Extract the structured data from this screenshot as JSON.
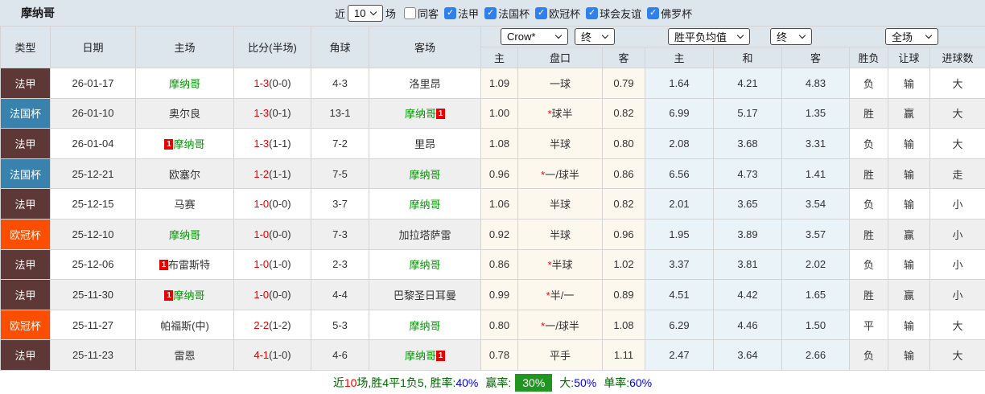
{
  "title": "摩纳哥",
  "filters": {
    "recent_label": "近",
    "recent_value": "10",
    "recent_suffix": "场",
    "checkboxes": [
      {
        "label": "同客",
        "checked": false
      },
      {
        "label": "法甲",
        "checked": true
      },
      {
        "label": "法国杯",
        "checked": true
      },
      {
        "label": "欧冠杯",
        "checked": true
      },
      {
        "label": "球会友谊",
        "checked": true
      },
      {
        "label": "佛罗杯",
        "checked": true
      }
    ]
  },
  "dropdowns": [
    {
      "label": "Crow*"
    },
    {
      "label": "终"
    },
    {
      "label": "胜平负均值"
    },
    {
      "label": "终"
    },
    {
      "label": "全场"
    }
  ],
  "table": {
    "header_left": [
      "类型",
      "日期",
      "主场",
      "比分(半场)",
      "角球",
      "客场"
    ],
    "header_odds": [
      "主",
      "盘口",
      "客"
    ],
    "header_avg": [
      "主",
      "和",
      "客"
    ],
    "header_result": [
      "胜负",
      "让球",
      "进球数"
    ],
    "rows": [
      {
        "league": "法甲",
        "league_type": "ligue1",
        "date": "26-01-17",
        "home": "摩纳哥",
        "home_monaco": true,
        "home_badge": "",
        "home_badge_pos": "",
        "score": "1-3",
        "half": "(0-0)",
        "corners": "4-3",
        "away": "洛里昂",
        "away_monaco": false,
        "away_badge": "",
        "away_badge_pos": "",
        "odds": [
          "1.09",
          "一球",
          "0.79"
        ],
        "handicap_star": false,
        "avg": [
          "1.64",
          "4.21",
          "4.83"
        ],
        "result": {
          "text": "负",
          "color": "green"
        },
        "handicap_res": {
          "text": "输",
          "color": "green"
        },
        "goals": {
          "text": "大",
          "color": "red"
        }
      },
      {
        "league": "法国杯",
        "league_type": "cup",
        "date": "26-01-10",
        "home": "奥尔良",
        "home_monaco": false,
        "home_badge": "",
        "home_badge_pos": "",
        "score": "1-3",
        "half": "(0-1)",
        "corners": "13-1",
        "away": "摩纳哥",
        "away_monaco": true,
        "away_badge": "1",
        "away_badge_pos": "after",
        "odds": [
          "1.00",
          "球半",
          "0.82"
        ],
        "handicap_star": true,
        "avg": [
          "6.99",
          "5.17",
          "1.35"
        ],
        "result": {
          "text": "胜",
          "color": "red"
        },
        "handicap_res": {
          "text": "赢",
          "color": "red"
        },
        "goals": {
          "text": "大",
          "color": "red"
        }
      },
      {
        "league": "法甲",
        "league_type": "ligue1",
        "date": "26-01-04",
        "home": "摩纳哥",
        "home_monaco": true,
        "home_badge": "1",
        "home_badge_pos": "before",
        "score": "1-3",
        "half": "(1-1)",
        "corners": "7-2",
        "away": "里昂",
        "away_monaco": false,
        "away_badge": "",
        "away_badge_pos": "",
        "odds": [
          "1.08",
          "半球",
          "0.80"
        ],
        "handicap_star": false,
        "avg": [
          "2.08",
          "3.68",
          "3.31"
        ],
        "result": {
          "text": "负",
          "color": "green"
        },
        "handicap_res": {
          "text": "输",
          "color": "green"
        },
        "goals": {
          "text": "大",
          "color": "red"
        }
      },
      {
        "league": "法国杯",
        "league_type": "cup",
        "date": "25-12-21",
        "home": "欧塞尔",
        "home_monaco": false,
        "home_badge": "",
        "home_badge_pos": "",
        "score": "1-2",
        "half": "(1-1)",
        "corners": "7-5",
        "away": "摩纳哥",
        "away_monaco": true,
        "away_badge": "",
        "away_badge_pos": "",
        "odds": [
          "0.96",
          "一/球半",
          "0.86"
        ],
        "handicap_star": true,
        "avg": [
          "6.56",
          "4.73",
          "1.41"
        ],
        "result": {
          "text": "胜",
          "color": "red"
        },
        "handicap_res": {
          "text": "输",
          "color": "green"
        },
        "goals": {
          "text": "走",
          "color": "blue"
        }
      },
      {
        "league": "法甲",
        "league_type": "ligue1",
        "date": "25-12-15",
        "home": "马赛",
        "home_monaco": false,
        "home_badge": "",
        "home_badge_pos": "",
        "score": "1-0",
        "half": "(0-0)",
        "corners": "3-7",
        "away": "摩纳哥",
        "away_monaco": true,
        "away_badge": "",
        "away_badge_pos": "",
        "odds": [
          "1.06",
          "半球",
          "0.82"
        ],
        "handicap_star": false,
        "avg": [
          "2.01",
          "3.65",
          "3.54"
        ],
        "result": {
          "text": "负",
          "color": "green"
        },
        "handicap_res": {
          "text": "输",
          "color": "green"
        },
        "goals": {
          "text": "小",
          "color": "green"
        }
      },
      {
        "league": "欧冠杯",
        "league_type": "ucl",
        "date": "25-12-10",
        "home": "摩纳哥",
        "home_monaco": true,
        "home_badge": "",
        "home_badge_pos": "",
        "score": "1-0",
        "half": "(0-0)",
        "corners": "7-3",
        "away": "加拉塔萨雷",
        "away_monaco": false,
        "away_badge": "",
        "away_badge_pos": "",
        "odds": [
          "0.92",
          "半球",
          "0.96"
        ],
        "handicap_star": false,
        "avg": [
          "1.95",
          "3.89",
          "3.57"
        ],
        "result": {
          "text": "胜",
          "color": "red"
        },
        "handicap_res": {
          "text": "赢",
          "color": "red"
        },
        "goals": {
          "text": "小",
          "color": "green"
        }
      },
      {
        "league": "法甲",
        "league_type": "ligue1",
        "date": "25-12-06",
        "home": "布雷斯特",
        "home_monaco": false,
        "home_badge": "1",
        "home_badge_pos": "before",
        "score": "1-0",
        "half": "(1-0)",
        "corners": "2-3",
        "away": "摩纳哥",
        "away_monaco": true,
        "away_badge": "",
        "away_badge_pos": "",
        "odds": [
          "0.86",
          "半球",
          "1.02"
        ],
        "handicap_star": true,
        "avg": [
          "3.37",
          "3.81",
          "2.02"
        ],
        "result": {
          "text": "负",
          "color": "green"
        },
        "handicap_res": {
          "text": "输",
          "color": "green"
        },
        "goals": {
          "text": "小",
          "color": "green"
        }
      },
      {
        "league": "法甲",
        "league_type": "ligue1",
        "date": "25-11-30",
        "home": "摩纳哥",
        "home_monaco": true,
        "home_badge": "1",
        "home_badge_pos": "before",
        "score": "1-0",
        "half": "(0-0)",
        "corners": "4-4",
        "away": "巴黎圣日耳曼",
        "away_monaco": false,
        "away_badge": "",
        "away_badge_pos": "",
        "odds": [
          "0.99",
          "半/一",
          "0.89"
        ],
        "handicap_star": true,
        "avg": [
          "4.51",
          "4.42",
          "1.65"
        ],
        "result": {
          "text": "胜",
          "color": "red"
        },
        "handicap_res": {
          "text": "赢",
          "color": "red"
        },
        "goals": {
          "text": "小",
          "color": "green"
        }
      },
      {
        "league": "欧冠杯",
        "league_type": "ucl",
        "date": "25-11-27",
        "home": "帕福斯(中)",
        "home_monaco": false,
        "home_badge": "",
        "home_badge_pos": "",
        "score": "2-2",
        "half": "(1-2)",
        "corners": "5-3",
        "away": "摩纳哥",
        "away_monaco": true,
        "away_badge": "",
        "away_badge_pos": "",
        "odds": [
          "0.80",
          "一/球半",
          "1.08"
        ],
        "handicap_star": true,
        "avg": [
          "6.29",
          "4.46",
          "1.50"
        ],
        "result": {
          "text": "平",
          "color": "blue"
        },
        "handicap_res": {
          "text": "输",
          "color": "green"
        },
        "goals": {
          "text": "大",
          "color": "red"
        }
      },
      {
        "league": "法甲",
        "league_type": "ligue1",
        "date": "25-11-23",
        "home": "雷恩",
        "home_monaco": false,
        "home_badge": "",
        "home_badge_pos": "",
        "score": "4-1",
        "half": "(1-0)",
        "corners": "4-6",
        "away": "摩纳哥",
        "away_monaco": true,
        "away_badge": "1",
        "away_badge_pos": "after",
        "odds": [
          "0.78",
          "平手",
          "1.11"
        ],
        "handicap_star": false,
        "avg": [
          "2.47",
          "3.64",
          "2.66"
        ],
        "result": {
          "text": "负",
          "color": "green"
        },
        "handicap_res": {
          "text": "输",
          "color": "green"
        },
        "goals": {
          "text": "大",
          "color": "red"
        }
      }
    ]
  },
  "summary": {
    "prefix": "近",
    "count": "10",
    "mid": "场,胜4平1负5, 胜率:",
    "win_rate": "40%",
    "win_label": "赢率:",
    "win_pct": "30%",
    "big_label": "大:",
    "big_pct": "50%",
    "single_label": "单率:",
    "single_pct": "60%"
  },
  "colors": {
    "header_bg": "#dee6ed",
    "league_ligue1": "#5e3836",
    "league_cup": "#3982ae",
    "league_ucl": "#fc4e00",
    "monaco_green": "#009900",
    "score_red": "#e60000",
    "result_red": "#cc0000",
    "result_green": "#008800",
    "result_blue": "#0000cc",
    "checkbox_blue": "#2f80ed",
    "handicap_col_bg": "#fdf8ee",
    "avg_col_bg": "#e9f3f8",
    "win_pct_bg": "#219421",
    "summary_green": "#006600",
    "summary_blue": "#0000ee",
    "row_alt_bg": "#efefef"
  }
}
